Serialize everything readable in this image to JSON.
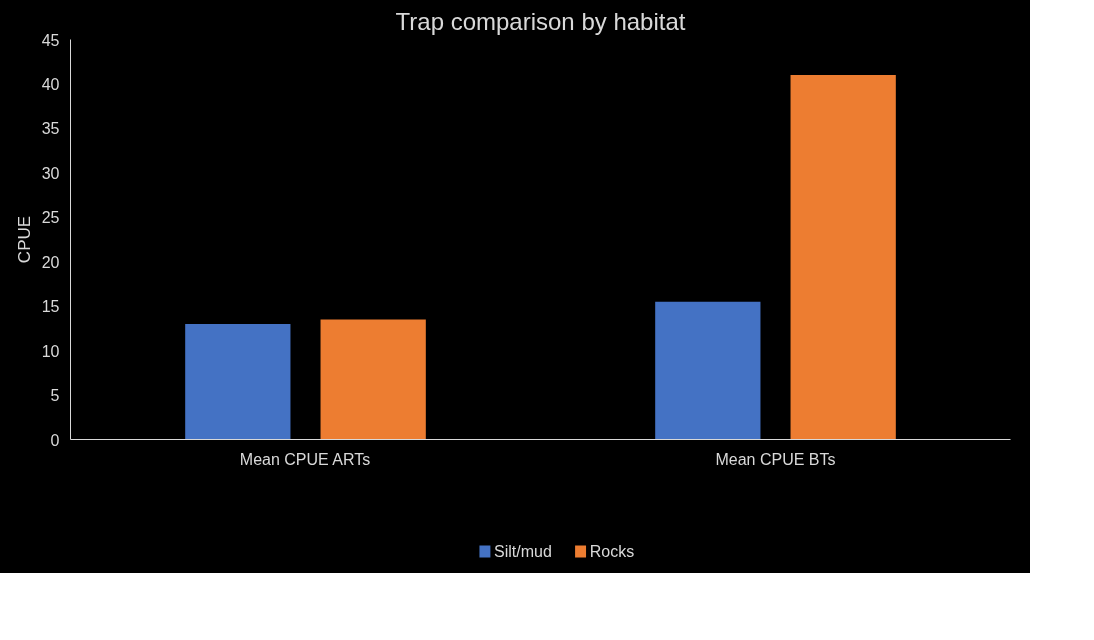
{
  "chart_data": {
    "type": "bar",
    "title": "Trap comparison by habitat",
    "ylabel": "CPUE",
    "categories": [
      "Mean CPUE ARTs",
      "Mean CPUE BTs"
    ],
    "series": [
      {
        "name": "Silt/mud",
        "color": "#4472c4",
        "values": [
          13,
          15.5
        ]
      },
      {
        "name": "Rocks",
        "color": "#ed7d31",
        "values": [
          13.5,
          41
        ]
      }
    ],
    "ylim": [
      0,
      45
    ],
    "yticks": [
      0,
      5,
      10,
      15,
      20,
      25,
      30,
      35,
      40,
      45
    ],
    "legend": "bottom"
  }
}
